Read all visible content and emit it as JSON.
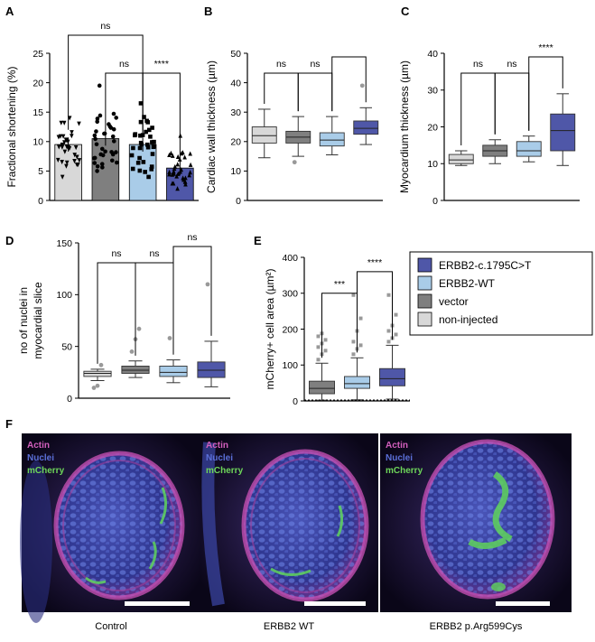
{
  "chart_data": [
    {
      "panel": "A",
      "type": "bar",
      "ylabel": "Fractional shortening (%)",
      "ylim": [
        0,
        25
      ],
      "yticks": [
        0,
        5,
        10,
        15,
        20,
        25
      ],
      "groups": [
        "non-injected",
        "vector",
        "ERBB2-WT",
        "ERBB2-c.1795C>T"
      ],
      "values": [
        9.5,
        10.5,
        9.5,
        5.5
      ],
      "points_min": [
        4,
        5,
        4,
        2
      ],
      "points_max": [
        14,
        19.5,
        16.5,
        11
      ],
      "markers": [
        "triangle-down",
        "circle",
        "square",
        "triangle-up"
      ],
      "comparisons": [
        {
          "from": 0,
          "to": 2,
          "label": "ns"
        },
        {
          "from": 1,
          "to": 2,
          "label": "ns"
        },
        {
          "from": 2,
          "to": 3,
          "label": "****"
        }
      ]
    },
    {
      "panel": "B",
      "type": "box",
      "ylabel": "Cardiac wall thickness (µm)",
      "ylim": [
        0,
        50
      ],
      "yticks": [
        0,
        10,
        20,
        30,
        40,
        50
      ],
      "groups": [
        "non-injected",
        "vector",
        "ERBB2-WT",
        "ERBB2-c.1795C>T"
      ],
      "boxes": [
        {
          "min": 14.5,
          "q1": 19.5,
          "median": 22,
          "q3": 25,
          "max": 31,
          "outliers": []
        },
        {
          "min": 15,
          "q1": 19.5,
          "median": 21.5,
          "q3": 23.5,
          "max": 28.5,
          "outliers": [
            13
          ]
        },
        {
          "min": 15.5,
          "q1": 18.5,
          "median": 20.5,
          "q3": 23,
          "max": 28.5,
          "outliers": []
        },
        {
          "min": 19,
          "q1": 22.5,
          "median": 24.5,
          "q3": 27,
          "max": 31.5,
          "outliers": [
            39
          ]
        }
      ],
      "comparisons": [
        {
          "from": 0,
          "to": 1,
          "label": "ns"
        },
        {
          "from": 1,
          "to": 2,
          "label": "ns"
        },
        {
          "from": 2,
          "to": 3,
          "label": ""
        }
      ]
    },
    {
      "panel": "C",
      "type": "box",
      "ylabel": "Myocardium thickness (µm)",
      "ylim": [
        0,
        40
      ],
      "yticks": [
        0,
        10,
        20,
        30,
        40
      ],
      "groups": [
        "non-injected",
        "vector",
        "ERBB2-WT",
        "ERBB2-c.1795C>T"
      ],
      "boxes": [
        {
          "min": 9.5,
          "q1": 10,
          "median": 11,
          "q3": 12.5,
          "max": 13.5,
          "outliers": []
        },
        {
          "min": 10,
          "q1": 12,
          "median": 13.5,
          "q3": 15,
          "max": 16.5,
          "outliers": []
        },
        {
          "min": 10.5,
          "q1": 12,
          "median": 13.5,
          "q3": 16,
          "max": 17.5,
          "outliers": []
        },
        {
          "min": 9.5,
          "q1": 13.5,
          "median": 19,
          "q3": 23.5,
          "max": 29,
          "outliers": []
        }
      ],
      "comparisons": [
        {
          "from": 0,
          "to": 1,
          "label": "ns"
        },
        {
          "from": 1,
          "to": 2,
          "label": "ns"
        },
        {
          "from": 2,
          "to": 3,
          "label": "****"
        }
      ]
    },
    {
      "panel": "D",
      "type": "box",
      "ylabel_lines": [
        "no of nuclei in",
        "myocardial slice"
      ],
      "ylim": [
        0,
        150
      ],
      "yticks": [
        0,
        50,
        100,
        150
      ],
      "groups": [
        "non-injected",
        "vector",
        "ERBB2-WT",
        "ERBB2-c.1795C>T"
      ],
      "boxes": [
        {
          "min": 17,
          "q1": 21,
          "median": 24,
          "q3": 26,
          "max": 28,
          "outliers": [
            10,
            12,
            32
          ]
        },
        {
          "min": 20,
          "q1": 24,
          "median": 27,
          "q3": 31,
          "max": 36,
          "outliers": [
            45,
            57,
            67
          ]
        },
        {
          "min": 15,
          "q1": 21,
          "median": 25,
          "q3": 31,
          "max": 37,
          "outliers": [
            58
          ]
        },
        {
          "min": 11,
          "q1": 20,
          "median": 27,
          "q3": 35,
          "max": 55,
          "outliers": [
            110
          ]
        }
      ],
      "comparisons": [
        {
          "from": 0,
          "to": 1,
          "label": "ns"
        },
        {
          "from": 1,
          "to": 2,
          "label": "ns"
        },
        {
          "from": 2,
          "to": 3,
          "label": "ns"
        }
      ]
    },
    {
      "panel": "E",
      "type": "box",
      "ylabel": "mCherry+ cell area (µm²)",
      "ylim": [
        0,
        400
      ],
      "yticks": [
        0,
        100,
        200,
        300,
        400
      ],
      "groups": [
        "vector",
        "ERBB2-WT",
        "ERBB2-c.1795C>T"
      ],
      "boxes": [
        {
          "min": 2,
          "q1": 20,
          "median": 35,
          "q3": 55,
          "max": 105,
          "outliers": [
            115,
            130,
            140,
            150,
            160,
            170,
            180,
            188
          ]
        },
        {
          "min": 3,
          "q1": 35,
          "median": 48,
          "q3": 68,
          "max": 120,
          "outliers": [
            130,
            145,
            155,
            165,
            195,
            230,
            295
          ]
        },
        {
          "min": 5,
          "q1": 42,
          "median": 62,
          "q3": 90,
          "max": 155,
          "outliers": [
            165,
            175,
            185,
            195,
            210,
            240,
            295
          ]
        }
      ],
      "comparisons": [
        {
          "from": 0,
          "to": 1,
          "label": "***"
        },
        {
          "from": 1,
          "to": 2,
          "label": "****"
        }
      ]
    }
  ],
  "panel_letters": {
    "a": "A",
    "b": "B",
    "c": "C",
    "d": "D",
    "e": "E",
    "f": "F"
  },
  "legend": {
    "entries": [
      {
        "label": "ERBB2-c.1795C>T",
        "color": "#4f57a8"
      },
      {
        "label": "ERBB2-WT",
        "color": "#a9cce8"
      },
      {
        "label": "vector",
        "color": "#7f7f7f"
      },
      {
        "label": "non-injected",
        "color": "#d8d8d8"
      }
    ]
  },
  "group_colors": {
    "non-injected": "#d8d8d8",
    "vector": "#7f7f7f",
    "ERBB2-WT": "#a9cce8",
    "ERBB2-c.1795C>T": "#4f57a8"
  },
  "images": {
    "channel_labels": [
      {
        "text": "Actin",
        "color": "#d35fbd"
      },
      {
        "text": "Nuclei",
        "color": "#5b6fd8"
      },
      {
        "text": "mCherry",
        "color": "#6ed65a"
      }
    ],
    "captions": [
      "Control",
      "ERBB2 WT",
      "ERBB2 p.Arg599Cys"
    ]
  }
}
